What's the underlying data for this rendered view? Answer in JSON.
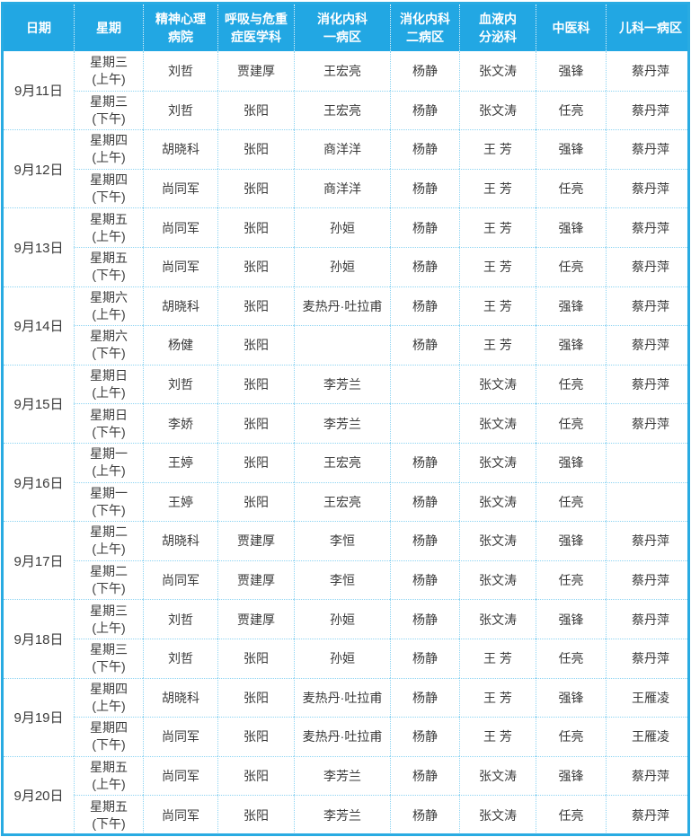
{
  "colors": {
    "header_bg": "#22A7E3",
    "header_text": "#FFFFFF",
    "outer_border": "#29ABE2",
    "grid_line": "#8ED4F2",
    "cell_text": "#3A3A3A"
  },
  "table": {
    "columns": [
      {
        "label": "日期",
        "lines": [
          "日期"
        ]
      },
      {
        "label": "星期",
        "lines": [
          "星期"
        ]
      },
      {
        "label": "精神心理病院",
        "lines": [
          "精神心理",
          "病院"
        ]
      },
      {
        "label": "呼吸与危重症医学科",
        "lines": [
          "呼吸与危重",
          "症医学科"
        ]
      },
      {
        "label": "消化内科一病区",
        "lines": [
          "消化内科",
          "一病区"
        ]
      },
      {
        "label": "消化内科二病区",
        "lines": [
          "消化内科",
          "二病区"
        ]
      },
      {
        "label": "血液内分泌科",
        "lines": [
          "血液内",
          "分泌科"
        ]
      },
      {
        "label": "中医科",
        "lines": [
          "中医科"
        ]
      },
      {
        "label": "儿科一病区",
        "lines": [
          "儿科一病区"
        ]
      }
    ],
    "groups": [
      {
        "date": "9月11日",
        "rows": [
          {
            "weekday": "星期三",
            "period": "(上午)",
            "cells": [
              "刘哲",
              "贾建厚",
              "王宏亮",
              "杨静",
              "张文涛",
              "强锋",
              "蔡丹萍"
            ]
          },
          {
            "weekday": "星期三",
            "period": "(下午)",
            "cells": [
              "刘哲",
              "张阳",
              "王宏亮",
              "杨静",
              "张文涛",
              "任亮",
              "蔡丹萍"
            ]
          }
        ]
      },
      {
        "date": "9月12日",
        "rows": [
          {
            "weekday": "星期四",
            "period": "(上午)",
            "cells": [
              "胡晓科",
              "张阳",
              "商洋洋",
              "杨静",
              "王 芳",
              "强锋",
              "蔡丹萍"
            ]
          },
          {
            "weekday": "星期四",
            "period": "(下午)",
            "cells": [
              "尚同军",
              "张阳",
              "商洋洋",
              "杨静",
              "王 芳",
              "任亮",
              "蔡丹萍"
            ]
          }
        ]
      },
      {
        "date": "9月13日",
        "rows": [
          {
            "weekday": "星期五",
            "period": "(上午)",
            "cells": [
              "尚同军",
              "张阳",
              "孙姮",
              "杨静",
              "王 芳",
              "强锋",
              "蔡丹萍"
            ]
          },
          {
            "weekday": "星期五",
            "period": "(下午)",
            "cells": [
              "尚同军",
              "张阳",
              "孙姮",
              "杨静",
              "王 芳",
              "任亮",
              "蔡丹萍"
            ]
          }
        ]
      },
      {
        "date": "9月14日",
        "rows": [
          {
            "weekday": "星期六",
            "period": "(上午)",
            "cells": [
              "胡晓科",
              "张阳",
              "麦热丹·吐拉甫",
              "杨静",
              "王 芳",
              "强锋",
              "蔡丹萍"
            ]
          },
          {
            "weekday": "星期六",
            "period": "(下午)",
            "cells": [
              "杨健",
              "张阳",
              "",
              "杨静",
              "王 芳",
              "强锋",
              "蔡丹萍"
            ]
          }
        ]
      },
      {
        "date": "9月15日",
        "rows": [
          {
            "weekday": "星期日",
            "period": "(上午)",
            "cells": [
              "刘哲",
              "张阳",
              "李芳兰",
              "",
              "张文涛",
              "任亮",
              "蔡丹萍"
            ]
          },
          {
            "weekday": "星期日",
            "period": "(下午)",
            "cells": [
              "李娇",
              "张阳",
              "李芳兰",
              "",
              "张文涛",
              "任亮",
              "蔡丹萍"
            ]
          }
        ]
      },
      {
        "date": "9月16日",
        "rows": [
          {
            "weekday": "星期一",
            "period": "(上午)",
            "cells": [
              "王婷",
              "张阳",
              "王宏亮",
              "杨静",
              "张文涛",
              "强锋",
              ""
            ]
          },
          {
            "weekday": "星期一",
            "period": "(下午)",
            "cells": [
              "王婷",
              "张阳",
              "王宏亮",
              "杨静",
              "张文涛",
              "任亮",
              ""
            ]
          }
        ]
      },
      {
        "date": "9月17日",
        "rows": [
          {
            "weekday": "星期二",
            "period": "(上午)",
            "cells": [
              "胡晓科",
              "贾建厚",
              "李恒",
              "杨静",
              "张文涛",
              "强锋",
              "蔡丹萍"
            ]
          },
          {
            "weekday": "星期二",
            "period": "(下午)",
            "cells": [
              "尚同军",
              "贾建厚",
              "李恒",
              "杨静",
              "张文涛",
              "任亮",
              "蔡丹萍"
            ]
          }
        ]
      },
      {
        "date": "9月18日",
        "rows": [
          {
            "weekday": "星期三",
            "period": "(上午)",
            "cells": [
              "刘哲",
              "贾建厚",
              "孙姮",
              "杨静",
              "张文涛",
              "强锋",
              "蔡丹萍"
            ]
          },
          {
            "weekday": "星期三",
            "period": "(下午)",
            "cells": [
              "刘哲",
              "张阳",
              "孙姮",
              "杨静",
              "王 芳",
              "任亮",
              "蔡丹萍"
            ]
          }
        ]
      },
      {
        "date": "9月19日",
        "rows": [
          {
            "weekday": "星期四",
            "period": "(上午)",
            "cells": [
              "胡晓科",
              "张阳",
              "麦热丹·吐拉甫",
              "杨静",
              "王 芳",
              "强锋",
              "王雁凌"
            ]
          },
          {
            "weekday": "星期四",
            "period": "(下午)",
            "cells": [
              "尚同军",
              "张阳",
              "麦热丹·吐拉甫",
              "杨静",
              "王 芳",
              "任亮",
              "王雁凌"
            ]
          }
        ]
      },
      {
        "date": "9月20日",
        "rows": [
          {
            "weekday": "星期五",
            "period": "(上午)",
            "cells": [
              "尚同军",
              "张阳",
              "李芳兰",
              "杨静",
              "张文涛",
              "强锋",
              "蔡丹萍"
            ]
          },
          {
            "weekday": "星期五",
            "period": "(下午)",
            "cells": [
              "尚同军",
              "张阳",
              "李芳兰",
              "杨静",
              "张文涛",
              "任亮",
              "蔡丹萍"
            ]
          }
        ]
      }
    ]
  }
}
